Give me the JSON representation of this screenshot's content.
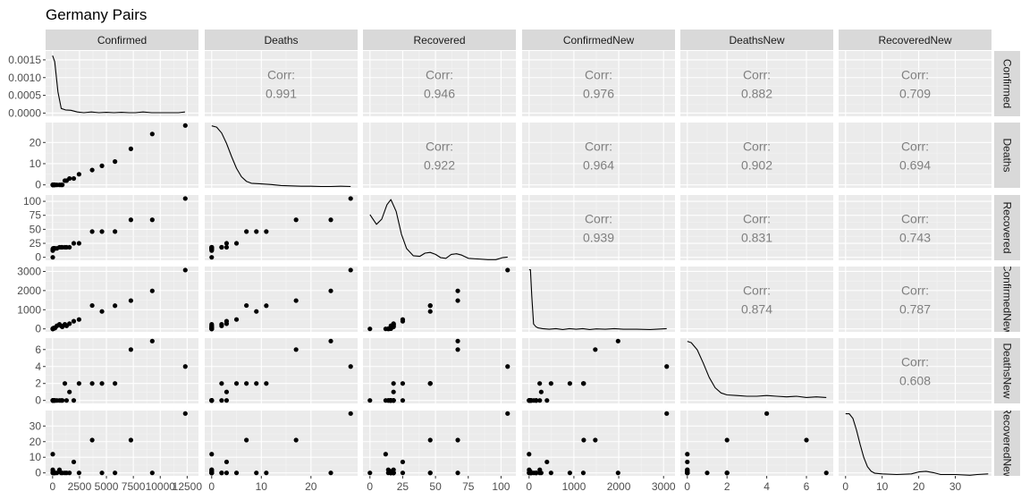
{
  "chart_data": {
    "type": "scatter",
    "title": "Germany Pairs",
    "variables": [
      "Confirmed",
      "Deaths",
      "Recovered",
      "ConfirmedNew",
      "DeathsNew",
      "RecoveredNew"
    ],
    "corr_label": "Corr:",
    "correlations": [
      {
        "row": 0,
        "col": 1,
        "value": "0.991"
      },
      {
        "row": 0,
        "col": 2,
        "value": "0.946"
      },
      {
        "row": 0,
        "col": 3,
        "value": "0.976"
      },
      {
        "row": 0,
        "col": 4,
        "value": "0.882"
      },
      {
        "row": 0,
        "col": 5,
        "value": "0.709"
      },
      {
        "row": 1,
        "col": 2,
        "value": "0.922"
      },
      {
        "row": 1,
        "col": 3,
        "value": "0.964"
      },
      {
        "row": 1,
        "col": 4,
        "value": "0.902"
      },
      {
        "row": 1,
        "col": 5,
        "value": "0.694"
      },
      {
        "row": 2,
        "col": 3,
        "value": "0.939"
      },
      {
        "row": 2,
        "col": 4,
        "value": "0.831"
      },
      {
        "row": 2,
        "col": 5,
        "value": "0.743"
      },
      {
        "row": 3,
        "col": 4,
        "value": "0.874"
      },
      {
        "row": 3,
        "col": 5,
        "value": "0.787"
      },
      {
        "row": 4,
        "col": 5,
        "value": "0.608"
      }
    ],
    "x_ticks": [
      [
        "0",
        "2500",
        "5000",
        "7500",
        "10000",
        "12500"
      ],
      [
        "0",
        "10",
        "20"
      ],
      [
        "0",
        "25",
        "50",
        "75",
        "100"
      ],
      [
        "0",
        "1000",
        "2000",
        "3000"
      ],
      [
        "0",
        "2",
        "4",
        "6"
      ],
      [
        "0",
        "10",
        "20",
        "30"
      ]
    ],
    "y_ticks": [
      [
        "0.0000",
        "0.0005",
        "0.0010",
        "0.0015"
      ],
      [
        "0",
        "10",
        "20"
      ],
      [
        "0",
        "25",
        "50",
        "75",
        "100"
      ],
      [
        "0",
        "1000",
        "2000",
        "3000"
      ],
      [
        "0",
        "2",
        "4",
        "6"
      ],
      [
        "0",
        "10",
        "20",
        "30"
      ]
    ],
    "x_tick_values": [
      [
        0,
        2500,
        5000,
        7500,
        10000,
        12500
      ],
      [
        0,
        10,
        20
      ],
      [
        0,
        25,
        50,
        75,
        100
      ],
      [
        0,
        1000,
        2000,
        3000
      ],
      [
        0,
        2,
        4,
        6
      ],
      [
        0,
        10,
        20,
        30
      ]
    ],
    "y_tick_values": [
      [
        0,
        0.0005,
        0.001,
        0.0015
      ],
      [
        0,
        10,
        20
      ],
      [
        0,
        25,
        50,
        75,
        100
      ],
      [
        0,
        1000,
        2000,
        3000
      ],
      [
        0,
        2,
        4,
        6
      ],
      [
        0,
        10,
        20,
        30
      ]
    ],
    "x_ranges": [
      [
        -650,
        13550
      ],
      [
        -1.4,
        29.4
      ],
      [
        -5.3,
        111.3
      ],
      [
        -155,
        3255
      ],
      [
        -0.35,
        7.35
      ],
      [
        -1.9,
        39.9
      ]
    ],
    "y_ranges": [
      [
        -9e-05,
        0.00175
      ],
      [
        -1.4,
        29.4
      ],
      [
        -5.3,
        111.3
      ],
      [
        -155,
        3255
      ],
      [
        -0.35,
        7.35
      ],
      [
        -1.9,
        39.9
      ]
    ],
    "grid": true,
    "observations": [
      {
        "Confirmed": 16,
        "Deaths": 0,
        "Recovered": 0,
        "ConfirmedNew": 0,
        "DeathsNew": 0,
        "RecoveredNew": 0
      },
      {
        "Confirmed": 16,
        "Deaths": 0,
        "Recovered": 12,
        "ConfirmedNew": 0,
        "DeathsNew": 0,
        "RecoveredNew": 12
      },
      {
        "Confirmed": 18,
        "Deaths": 0,
        "Recovered": 14,
        "ConfirmedNew": 2,
        "DeathsNew": 0,
        "RecoveredNew": 2
      },
      {
        "Confirmed": 21,
        "Deaths": 0,
        "Recovered": 14,
        "ConfirmedNew": 3,
        "DeathsNew": 0,
        "RecoveredNew": 0
      },
      {
        "Confirmed": 26,
        "Deaths": 0,
        "Recovered": 15,
        "ConfirmedNew": 5,
        "DeathsNew": 0,
        "RecoveredNew": 1
      },
      {
        "Confirmed": 53,
        "Deaths": 0,
        "Recovered": 16,
        "ConfirmedNew": 27,
        "DeathsNew": 0,
        "RecoveredNew": 1
      },
      {
        "Confirmed": 66,
        "Deaths": 0,
        "Recovered": 16,
        "ConfirmedNew": 13,
        "DeathsNew": 0,
        "RecoveredNew": 0
      },
      {
        "Confirmed": 117,
        "Deaths": 0,
        "Recovered": 16,
        "ConfirmedNew": 51,
        "DeathsNew": 0,
        "RecoveredNew": 0
      },
      {
        "Confirmed": 150,
        "Deaths": 0,
        "Recovered": 16,
        "ConfirmedNew": 33,
        "DeathsNew": 0,
        "RecoveredNew": 0
      },
      {
        "Confirmed": 188,
        "Deaths": 0,
        "Recovered": 16,
        "ConfirmedNew": 38,
        "DeathsNew": 0,
        "RecoveredNew": 0
      },
      {
        "Confirmed": 240,
        "Deaths": 0,
        "Recovered": 16,
        "ConfirmedNew": 52,
        "DeathsNew": 0,
        "RecoveredNew": 0
      },
      {
        "Confirmed": 400,
        "Deaths": 0,
        "Recovered": 16,
        "ConfirmedNew": 160,
        "DeathsNew": 0,
        "RecoveredNew": 0
      },
      {
        "Confirmed": 639,
        "Deaths": 0,
        "Recovered": 18,
        "ConfirmedNew": 239,
        "DeathsNew": 0,
        "RecoveredNew": 2
      },
      {
        "Confirmed": 795,
        "Deaths": 0,
        "Recovered": 18,
        "ConfirmedNew": 156,
        "DeathsNew": 0,
        "RecoveredNew": 0
      },
      {
        "Confirmed": 902,
        "Deaths": 0,
        "Recovered": 18,
        "ConfirmedNew": 107,
        "DeathsNew": 0,
        "RecoveredNew": 0
      },
      {
        "Confirmed": 1139,
        "Deaths": 2,
        "Recovered": 18,
        "ConfirmedNew": 237,
        "DeathsNew": 2,
        "RecoveredNew": 0
      },
      {
        "Confirmed": 1296,
        "Deaths": 2,
        "Recovered": 18,
        "ConfirmedNew": 157,
        "DeathsNew": 0,
        "RecoveredNew": 0
      },
      {
        "Confirmed": 1567,
        "Deaths": 3,
        "Recovered": 18,
        "ConfirmedNew": 271,
        "DeathsNew": 1,
        "RecoveredNew": 0
      },
      {
        "Confirmed": 1966,
        "Deaths": 3,
        "Recovered": 25,
        "ConfirmedNew": 399,
        "DeathsNew": 0,
        "RecoveredNew": 7
      },
      {
        "Confirmed": 2456,
        "Deaths": 5,
        "Recovered": 25,
        "ConfirmedNew": 490,
        "DeathsNew": 2,
        "RecoveredNew": 0
      },
      {
        "Confirmed": 3675,
        "Deaths": 7,
        "Recovered": 46,
        "ConfirmedNew": 1219,
        "DeathsNew": 2,
        "RecoveredNew": 21
      },
      {
        "Confirmed": 4585,
        "Deaths": 9,
        "Recovered": 46,
        "ConfirmedNew": 910,
        "DeathsNew": 2,
        "RecoveredNew": 0
      },
      {
        "Confirmed": 5795,
        "Deaths": 11,
        "Recovered": 46,
        "ConfirmedNew": 1210,
        "DeathsNew": 2,
        "RecoveredNew": 0
      },
      {
        "Confirmed": 7272,
        "Deaths": 17,
        "Recovered": 67,
        "ConfirmedNew": 1477,
        "DeathsNew": 6,
        "RecoveredNew": 21
      },
      {
        "Confirmed": 9257,
        "Deaths": 24,
        "Recovered": 67,
        "ConfirmedNew": 1985,
        "DeathsNew": 7,
        "RecoveredNew": 0
      },
      {
        "Confirmed": 12327,
        "Deaths": 28,
        "Recovered": 105,
        "ConfirmedNew": 3070,
        "DeathsNew": 4,
        "RecoveredNew": 38
      }
    ],
    "density_curves": [
      [
        [
          0,
          0.00162
        ],
        [
          200,
          0.00145
        ],
        [
          500,
          0.0006
        ],
        [
          800,
          0.00013
        ],
        [
          1200,
          9e-05
        ],
        [
          1700,
          8e-05
        ],
        [
          2300,
          3e-05
        ],
        [
          2900,
          1e-05
        ],
        [
          3600,
          3e-05
        ],
        [
          4300,
          1e-05
        ],
        [
          5000,
          2e-05
        ],
        [
          5700,
          1e-05
        ],
        [
          6400,
          2e-05
        ],
        [
          7100,
          1e-05
        ],
        [
          7700,
          1e-05
        ],
        [
          8400,
          3e-05
        ],
        [
          9200,
          1e-05
        ],
        [
          10000,
          1e-05
        ],
        [
          10800,
          1e-05
        ],
        [
          11700,
          1e-05
        ],
        [
          12300,
          3e-05
        ]
      ],
      [
        [
          0,
          0.95
        ],
        [
          1,
          0.93
        ],
        [
          2,
          0.84
        ],
        [
          3,
          0.68
        ],
        [
          4,
          0.48
        ],
        [
          5,
          0.3
        ],
        [
          6,
          0.17
        ],
        [
          7,
          0.1
        ],
        [
          8,
          0.07
        ],
        [
          10,
          0.06
        ],
        [
          12,
          0.05
        ],
        [
          14,
          0.035
        ],
        [
          16,
          0.03
        ],
        [
          18,
          0.025
        ],
        [
          20,
          0.025
        ],
        [
          22,
          0.02
        ],
        [
          24,
          0.02
        ],
        [
          26,
          0.025
        ],
        [
          28,
          0.02
        ]
      ],
      [
        [
          0,
          0.7
        ],
        [
          5,
          0.55
        ],
        [
          9,
          0.63
        ],
        [
          13,
          0.85
        ],
        [
          16,
          0.93
        ],
        [
          20,
          0.75
        ],
        [
          24,
          0.4
        ],
        [
          28,
          0.18
        ],
        [
          33,
          0.07
        ],
        [
          38,
          0.06
        ],
        [
          42,
          0.11
        ],
        [
          46,
          0.12
        ],
        [
          50,
          0.09
        ],
        [
          54,
          0.04
        ],
        [
          58,
          0.03
        ],
        [
          62,
          0.09
        ],
        [
          66,
          0.1
        ],
        [
          70,
          0.08
        ],
        [
          75,
          0.03
        ],
        [
          82,
          0.02
        ],
        [
          90,
          0.01
        ],
        [
          96,
          0.01
        ],
        [
          101,
          0.04
        ],
        [
          105,
          0.05
        ]
      ],
      [
        [
          0,
          0.95
        ],
        [
          30,
          0.95
        ],
        [
          60,
          0.55
        ],
        [
          100,
          0.12
        ],
        [
          150,
          0.08
        ],
        [
          200,
          0.06
        ],
        [
          300,
          0.05
        ],
        [
          450,
          0.04
        ],
        [
          600,
          0.05
        ],
        [
          750,
          0.035
        ],
        [
          900,
          0.05
        ],
        [
          1050,
          0.04
        ],
        [
          1200,
          0.05
        ],
        [
          1350,
          0.035
        ],
        [
          1500,
          0.045
        ],
        [
          1700,
          0.04
        ],
        [
          1900,
          0.05
        ],
        [
          2100,
          0.04
        ],
        [
          2400,
          0.04
        ],
        [
          2700,
          0.035
        ],
        [
          3070,
          0.05
        ]
      ],
      [
        [
          0,
          0.95
        ],
        [
          0.2,
          0.93
        ],
        [
          0.5,
          0.82
        ],
        [
          0.8,
          0.62
        ],
        [
          1.1,
          0.4
        ],
        [
          1.4,
          0.24
        ],
        [
          1.7,
          0.16
        ],
        [
          2.0,
          0.13
        ],
        [
          2.5,
          0.12
        ],
        [
          3.0,
          0.11
        ],
        [
          3.5,
          0.11
        ],
        [
          4.0,
          0.12
        ],
        [
          4.5,
          0.11
        ],
        [
          5.0,
          0.1
        ],
        [
          5.5,
          0.11
        ],
        [
          6.0,
          0.09
        ],
        [
          6.5,
          0.1
        ],
        [
          7.0,
          0.09
        ]
      ],
      [
        [
          0,
          0.95
        ],
        [
          1,
          0.95
        ],
        [
          2,
          0.88
        ],
        [
          3,
          0.7
        ],
        [
          4,
          0.48
        ],
        [
          5,
          0.28
        ],
        [
          6,
          0.14
        ],
        [
          7,
          0.07
        ],
        [
          8,
          0.04
        ],
        [
          10,
          0.03
        ],
        [
          14,
          0.02
        ],
        [
          18,
          0.03
        ],
        [
          20,
          0.06
        ],
        [
          22,
          0.07
        ],
        [
          24,
          0.05
        ],
        [
          26,
          0.02
        ],
        [
          30,
          0.02
        ],
        [
          34,
          0.01
        ],
        [
          36,
          0.02
        ],
        [
          39,
          0.03
        ]
      ]
    ]
  }
}
